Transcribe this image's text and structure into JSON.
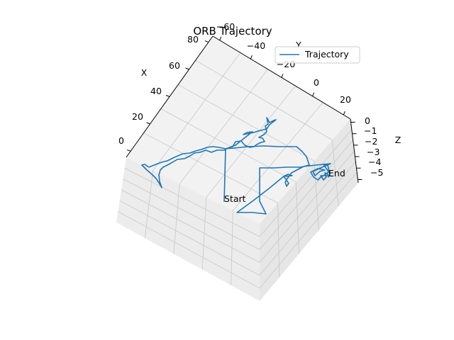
{
  "chart_data": {
    "type": "line",
    "projection": "3d",
    "title": "ORB Trajectory",
    "xlabel": "X",
    "ylabel": "Y",
    "zlabel": "Z",
    "x_ticks": [
      "0",
      "20",
      "40",
      "60",
      "80"
    ],
    "y_ticks": [
      "−60",
      "−40",
      "−20",
      "0",
      "20"
    ],
    "z_ticks": [
      "0",
      "−1",
      "−2",
      "−3",
      "−4",
      "−5"
    ],
    "xlim": [
      -5,
      85
    ],
    "ylim": [
      -65,
      25
    ],
    "zlim": [
      -5.5,
      0
    ],
    "grid": true,
    "legend": {
      "position": "top-right",
      "entries": [
        "Trajectory"
      ]
    },
    "series": [
      {
        "name": "Trajectory",
        "color": "#1f77b4",
        "annotations": {
          "start": "Start",
          "end": "End"
        }
      }
    ]
  }
}
